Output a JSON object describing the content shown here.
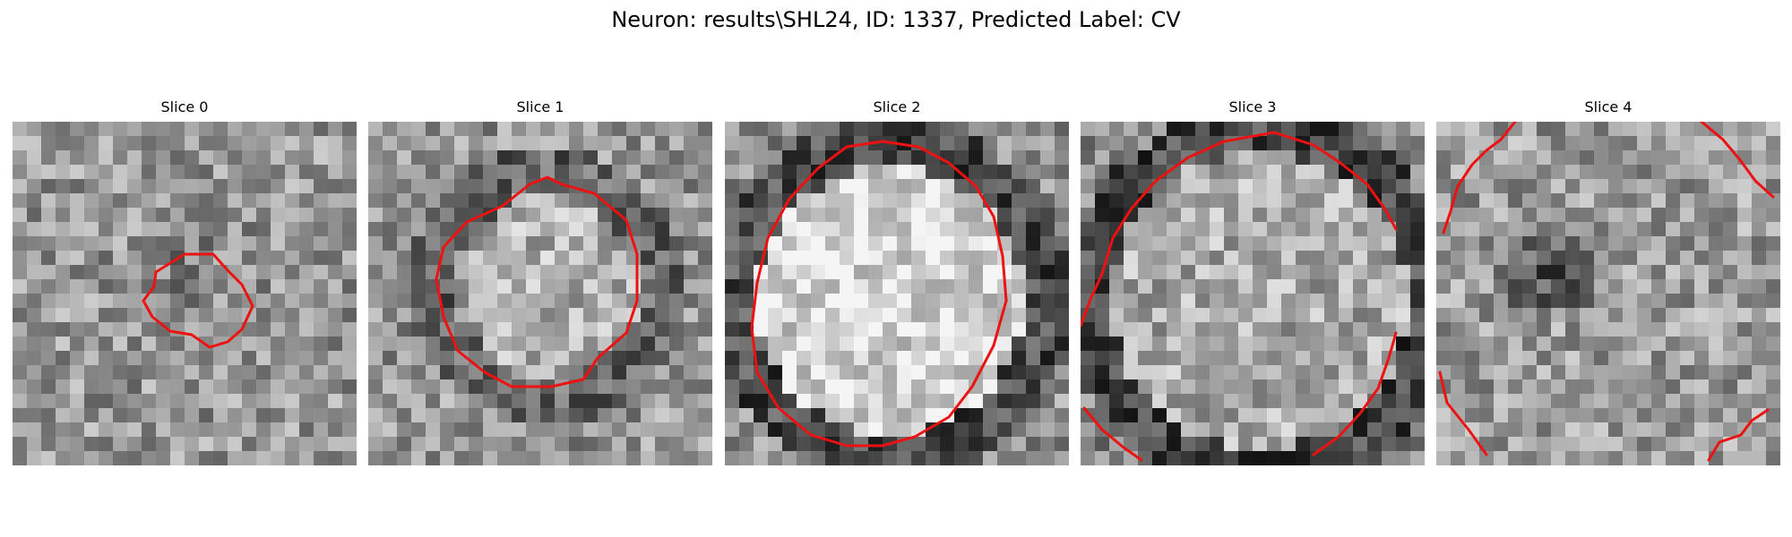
{
  "figure": {
    "title": "Neuron: results\\SHL24, ID: 1337, Predicted Label: CV"
  },
  "panels": [
    {
      "title": "Slice 0"
    },
    {
      "title": "Slice 1"
    },
    {
      "title": "Slice 2"
    },
    {
      "title": "Slice 3"
    },
    {
      "title": "Slice 4"
    }
  ],
  "colors": {
    "contour": "#ee1111",
    "background": "#ffffff"
  }
}
